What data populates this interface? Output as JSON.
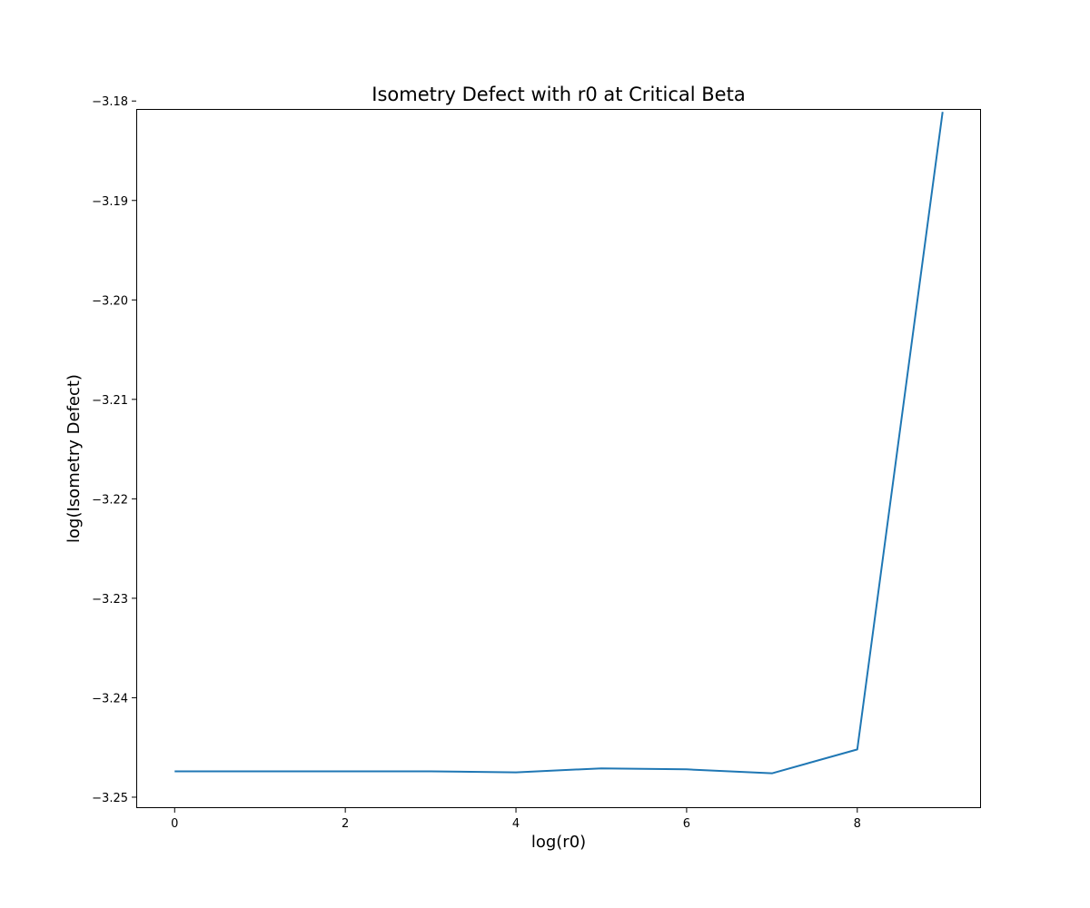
{
  "chart_data": {
    "type": "line",
    "title": "Isometry Defect with r0 at Critical Beta",
    "xlabel": "log(r0)",
    "ylabel": "log(Isometry Defect)",
    "xlim": [
      -0.45,
      9.45
    ],
    "ylim": [
      -3.2511,
      -3.1808
    ],
    "x_ticks": [
      0,
      2,
      4,
      6,
      8
    ],
    "x_tick_labels": [
      "0",
      "2",
      "4",
      "6",
      "8"
    ],
    "y_ticks": [
      -3.25,
      -3.24,
      -3.23,
      -3.22,
      -3.21,
      -3.2,
      -3.19,
      -3.18
    ],
    "y_tick_labels": [
      "−3.25",
      "−3.24",
      "−3.23",
      "−3.22",
      "−3.21",
      "−3.20",
      "−3.19",
      "−3.18"
    ],
    "grid": false,
    "series": [
      {
        "color": "#1f77b4",
        "x": [
          0,
          1,
          2,
          3,
          4,
          5,
          6,
          7,
          8,
          9
        ],
        "y": [
          -3.2474,
          -3.2474,
          -3.2474,
          -3.2474,
          -3.2475,
          -3.2471,
          -3.2472,
          -3.2476,
          -3.2452,
          -3.1811
        ]
      }
    ]
  }
}
